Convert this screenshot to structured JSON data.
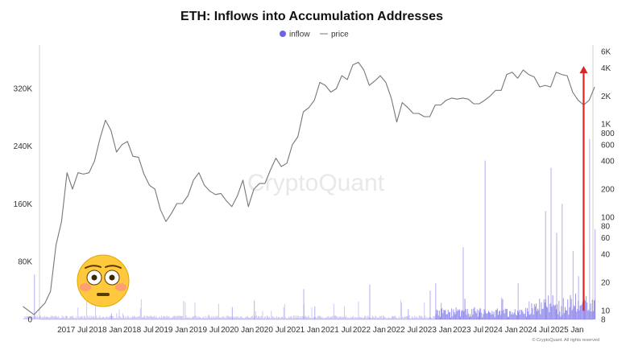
{
  "chart_data": {
    "type": "bar",
    "title": "ETH: Inflows into Accumulation Addresses",
    "legend": [
      {
        "name": "inflow",
        "color": "#6c63e6",
        "marker": "dot"
      },
      {
        "name": "price",
        "color": "#777777",
        "marker": "line"
      }
    ],
    "legend_position": "top-center",
    "watermark": "CryptoQuant",
    "footnote": "© CryptoQuant. All rights reserved",
    "x_ticks": [
      "2017 Jul",
      "2018 Jan",
      "2018 Jul",
      "2019 Jan",
      "2019 Jul",
      "2020 Jan",
      "2020 Jul",
      "2021 Jan",
      "2021 Jul",
      "2022 Jan",
      "2022 Jul",
      "2023 Jan",
      "2023 Jul",
      "2024 Jan",
      "2024 Jul",
      "2025 Jan"
    ],
    "y_left_ticks": [
      "0",
      "80K",
      "160K",
      "240K",
      "320K"
    ],
    "y_left_range": [
      0,
      380000
    ],
    "y_right_ticks": [
      "8",
      "10",
      "20",
      "40",
      "60",
      "80",
      "100",
      "200",
      "400",
      "600",
      "800",
      "1K",
      "2K",
      "4K",
      "6K"
    ],
    "y_right_scale": "log",
    "y_right_range": [
      8,
      6500
    ],
    "grid": false,
    "series": [
      {
        "name": "price",
        "color": "#777777",
        "axis": "right",
        "x": [
          "2016-10",
          "2016-12",
          "2017-02",
          "2017-03",
          "2017-04",
          "2017-05",
          "2017-06",
          "2017-07",
          "2017-08",
          "2017-09",
          "2017-10",
          "2017-11",
          "2017-12",
          "2018-01",
          "2018-02",
          "2018-03",
          "2018-04",
          "2018-05",
          "2018-06",
          "2018-07",
          "2018-08",
          "2018-09",
          "2018-10",
          "2018-11",
          "2018-12",
          "2019-01",
          "2019-02",
          "2019-03",
          "2019-04",
          "2019-05",
          "2019-06",
          "2019-07",
          "2019-08",
          "2019-09",
          "2019-10",
          "2019-11",
          "2019-12",
          "2020-01",
          "2020-02",
          "2020-03",
          "2020-04",
          "2020-05",
          "2020-06",
          "2020-07",
          "2020-08",
          "2020-09",
          "2020-10",
          "2020-11",
          "2020-12",
          "2021-01",
          "2021-02",
          "2021-03",
          "2021-04",
          "2021-05",
          "2021-06",
          "2021-07",
          "2021-08",
          "2021-09",
          "2021-10",
          "2021-11",
          "2021-12",
          "2022-01",
          "2022-02",
          "2022-03",
          "2022-04",
          "2022-05",
          "2022-06",
          "2022-07",
          "2022-08",
          "2022-09",
          "2022-10",
          "2022-11",
          "2022-12",
          "2023-01",
          "2023-02",
          "2023-03",
          "2023-04",
          "2023-05",
          "2023-06",
          "2023-07",
          "2023-08",
          "2023-09",
          "2023-10",
          "2023-11",
          "2023-12",
          "2024-01",
          "2024-02",
          "2024-03",
          "2024-04",
          "2024-05",
          "2024-06",
          "2024-07",
          "2024-08",
          "2024-09",
          "2024-10",
          "2024-11",
          "2024-12",
          "2025-01",
          "2025-02",
          "2025-03",
          "2025-04",
          "2025-05",
          "2025-06"
        ],
        "values": [
          11,
          9,
          12,
          16,
          50,
          90,
          300,
          200,
          300,
          290,
          300,
          400,
          700,
          1100,
          850,
          500,
          600,
          650,
          450,
          440,
          290,
          220,
          200,
          120,
          90,
          110,
          140,
          140,
          170,
          250,
          300,
          220,
          190,
          175,
          180,
          150,
          130,
          170,
          250,
          130,
          200,
          230,
          230,
          320,
          430,
          350,
          380,
          600,
          730,
          1350,
          1500,
          1800,
          2800,
          2600,
          2200,
          2400,
          3300,
          3000,
          4300,
          4600,
          3800,
          2600,
          2900,
          3300,
          2800,
          1900,
          1050,
          1700,
          1500,
          1300,
          1300,
          1200,
          1200,
          1600,
          1600,
          1800,
          1900,
          1850,
          1900,
          1850,
          1650,
          1650,
          1800,
          2000,
          2300,
          2300,
          3400,
          3600,
          3100,
          3800,
          3400,
          3200,
          2500,
          2600,
          2500,
          3600,
          3400,
          3300,
          2200,
          1800,
          1600,
          1800,
          2500
        ]
      },
      {
        "name": "inflow",
        "color": "#6c63e6",
        "axis": "left",
        "x_start": "2016-10",
        "step": "~5 days",
        "values": "daily inflow series, mostly under 20K with spikes up to ~250K in 2023–2025"
      }
    ],
    "inflow_spikes": [
      {
        "date": "2016-12",
        "value": 62000
      },
      {
        "date": "2018-02",
        "value": 8000
      },
      {
        "date": "2019-12",
        "value": 17000
      },
      {
        "date": "2020-04",
        "value": 26000
      },
      {
        "date": "2021-01",
        "value": 42000
      },
      {
        "date": "2021-03",
        "value": 18000
      },
      {
        "date": "2022-01",
        "value": 48000
      },
      {
        "date": "2022-08",
        "value": 14000
      },
      {
        "date": "2022-12",
        "value": 40000
      },
      {
        "date": "2023-01",
        "value": 50000
      },
      {
        "date": "2023-02",
        "value": 23000
      },
      {
        "date": "2023-06",
        "value": 100000
      },
      {
        "date": "2023-09",
        "value": 15000
      },
      {
        "date": "2023-10",
        "value": 220000
      },
      {
        "date": "2024-01",
        "value": 30000
      },
      {
        "date": "2024-04",
        "value": 50000
      },
      {
        "date": "2024-06",
        "value": 25000
      },
      {
        "date": "2024-09",
        "value": 150000
      },
      {
        "date": "2024-10",
        "value": 210000
      },
      {
        "date": "2024-11",
        "value": 120000
      },
      {
        "date": "2024-12",
        "value": 160000
      },
      {
        "date": "2025-02",
        "value": 95000
      },
      {
        "date": "2025-03",
        "value": 60000
      },
      {
        "date": "2025-04",
        "value": 105000
      },
      {
        "date": "2025-05",
        "value": 250000
      },
      {
        "date": "2025-06",
        "value": 125000
      }
    ],
    "annotations": [
      {
        "type": "arrow",
        "color": "#d62728",
        "from_date": "2025-04",
        "from_y_left": 12000,
        "to_date": "2025-04",
        "to_y_right": 4200
      },
      {
        "type": "emoji",
        "symbol": "😳",
        "position": "bottom-left"
      }
    ]
  }
}
